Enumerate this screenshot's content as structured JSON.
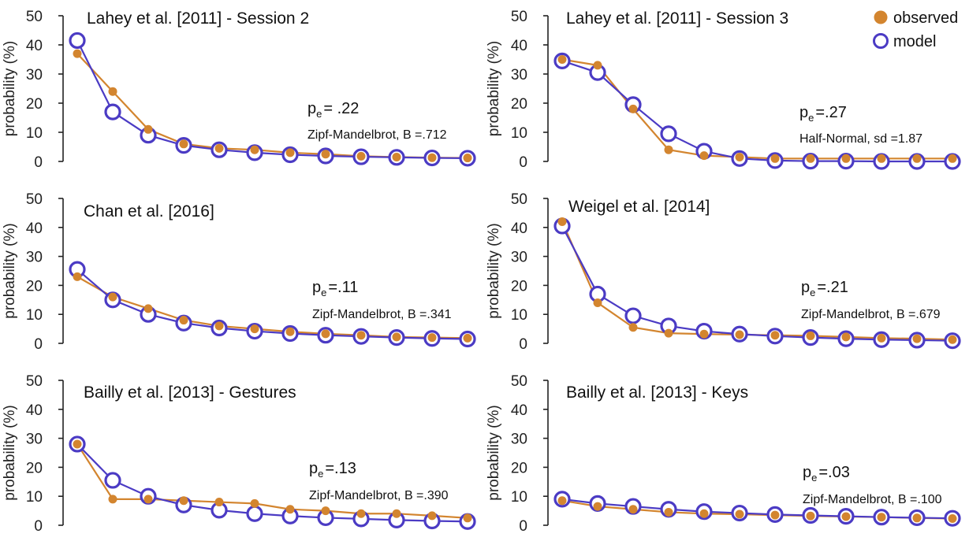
{
  "legend": {
    "observed_label": "observed",
    "model_label": "model",
    "placement": "top-right"
  },
  "colors": {
    "observed": "#d3852f",
    "model": "#4b3bc4",
    "axis": "#222222"
  },
  "chart_data": [
    {
      "type": "line",
      "title": "Lahey et al. [2011] - Session 2",
      "ylabel": "probability (%)",
      "ylim": [
        0,
        50
      ],
      "yticks": [
        "0",
        "10",
        "20",
        "30",
        "40",
        "50"
      ],
      "x": [
        1,
        2,
        3,
        4,
        5,
        6,
        7,
        8,
        9,
        10,
        11,
        12
      ],
      "pe_prefix": "p",
      "pe_sub": "e",
      "pe_value": "= .22",
      "model_fit": "Zipf-Mandelbrot, B =.712",
      "series": [
        {
          "name": "observed",
          "values": [
            37,
            24,
            11,
            6,
            4.5,
            4,
            3,
            2.5,
            1.8,
            1.5,
            1.3,
            1.2
          ]
        },
        {
          "name": "model",
          "values": [
            41.5,
            17,
            9,
            5.5,
            4,
            3,
            2.3,
            1.9,
            1.6,
            1.4,
            1.2,
            1.1
          ]
        }
      ]
    },
    {
      "type": "line",
      "title": "Lahey et al. [2011] - Session 3",
      "ylabel": "probability (%)",
      "ylim": [
        0,
        50
      ],
      "yticks": [
        "0",
        "10",
        "20",
        "30",
        "40",
        "50"
      ],
      "x": [
        1,
        2,
        3,
        4,
        5,
        6,
        7,
        8,
        9,
        10,
        11,
        12
      ],
      "pe_prefix": "p",
      "pe_sub": "e",
      "pe_value": "=.27",
      "model_fit": "Half-Normal, sd =1.87",
      "series": [
        {
          "name": "observed",
          "values": [
            35,
            33,
            18,
            4,
            2,
            1.5,
            1,
            1,
            1,
            1,
            1,
            1
          ]
        },
        {
          "name": "model",
          "values": [
            34.5,
            30.5,
            19.5,
            9.5,
            3.5,
            1,
            0.3,
            0.1,
            0.1,
            0,
            0,
            0
          ]
        }
      ]
    },
    {
      "type": "line",
      "title": "Chan et al. [2016]",
      "ylabel": "probability (%)",
      "ylim": [
        0,
        50
      ],
      "yticks": [
        "0",
        "10",
        "20",
        "30",
        "40",
        "50"
      ],
      "x": [
        1,
        2,
        3,
        4,
        5,
        6,
        7,
        8,
        9,
        10,
        11,
        12
      ],
      "pe_prefix": "p",
      "pe_sub": "e",
      "pe_value": "=.11",
      "model_fit": "Zipf-Mandelbrot, B =.341",
      "series": [
        {
          "name": "observed",
          "values": [
            23,
            16,
            12,
            8,
            6,
            5,
            4,
            3.3,
            2.8,
            2.2,
            2,
            1.8
          ]
        },
        {
          "name": "model",
          "values": [
            25.5,
            15,
            10,
            7,
            5.3,
            4.2,
            3.4,
            2.8,
            2.4,
            2,
            1.7,
            1.5
          ]
        }
      ]
    },
    {
      "type": "line",
      "title": "Weigel et al. [2014]",
      "ylabel": "probability (%)",
      "ylim": [
        0,
        50
      ],
      "yticks": [
        "0",
        "10",
        "20",
        "30",
        "40",
        "50"
      ],
      "x": [
        1,
        2,
        3,
        4,
        5,
        6,
        7,
        8,
        9,
        10,
        11,
        12
      ],
      "pe_prefix": "p",
      "pe_sub": "e",
      "pe_value": "=.21",
      "model_fit": "Zipf-Mandelbrot, B =.679",
      "series": [
        {
          "name": "observed",
          "values": [
            42,
            14,
            5.5,
            3.5,
            3.2,
            3,
            2.8,
            2.6,
            2.2,
            1.8,
            1.6,
            1.3
          ]
        },
        {
          "name": "model",
          "values": [
            40.5,
            17,
            9.5,
            6,
            4.2,
            3.2,
            2.5,
            2,
            1.6,
            1.3,
            1.1,
            0.9
          ]
        }
      ]
    },
    {
      "type": "line",
      "title": "Bailly et al. [2013] - Gestures",
      "ylabel": "probability (%)",
      "ylim": [
        0,
        50
      ],
      "yticks": [
        "0",
        "10",
        "20",
        "30",
        "40",
        "50"
      ],
      "x": [
        1,
        2,
        3,
        4,
        5,
        6,
        7,
        8,
        9,
        10,
        11,
        12
      ],
      "pe_prefix": "p",
      "pe_sub": "e",
      "pe_value": "=.13",
      "model_fit": "Zipf-Mandelbrot, B =.390",
      "series": [
        {
          "name": "observed",
          "values": [
            28,
            9,
            9,
            8.5,
            8,
            7.5,
            5.5,
            5,
            4,
            4,
            3.3,
            2.5
          ]
        },
        {
          "name": "model",
          "values": [
            28,
            15.5,
            10,
            7,
            5.2,
            4,
            3.2,
            2.6,
            2.2,
            1.8,
            1.5,
            1.3
          ]
        }
      ]
    },
    {
      "type": "line",
      "title": "Bailly et al. [2013] - Keys",
      "ylabel": "probability (%)",
      "ylim": [
        0,
        50
      ],
      "yticks": [
        "0",
        "10",
        "20",
        "30",
        "40",
        "50"
      ],
      "x": [
        1,
        2,
        3,
        4,
        5,
        6,
        7,
        8,
        9,
        10,
        11,
        12
      ],
      "pe_prefix": "p",
      "pe_sub": "e",
      "pe_value": "=.03",
      "model_fit": "Zipf-Mandelbrot, B =.100",
      "series": [
        {
          "name": "observed",
          "values": [
            8.5,
            6.5,
            5.5,
            4.5,
            4,
            3.8,
            3.5,
            3.2,
            3,
            2.8,
            2.5,
            2.3
          ]
        },
        {
          "name": "model",
          "values": [
            9,
            7.5,
            6.5,
            5.5,
            4.7,
            4.2,
            3.7,
            3.4,
            3.1,
            2.8,
            2.6,
            2.4
          ]
        }
      ]
    }
  ]
}
